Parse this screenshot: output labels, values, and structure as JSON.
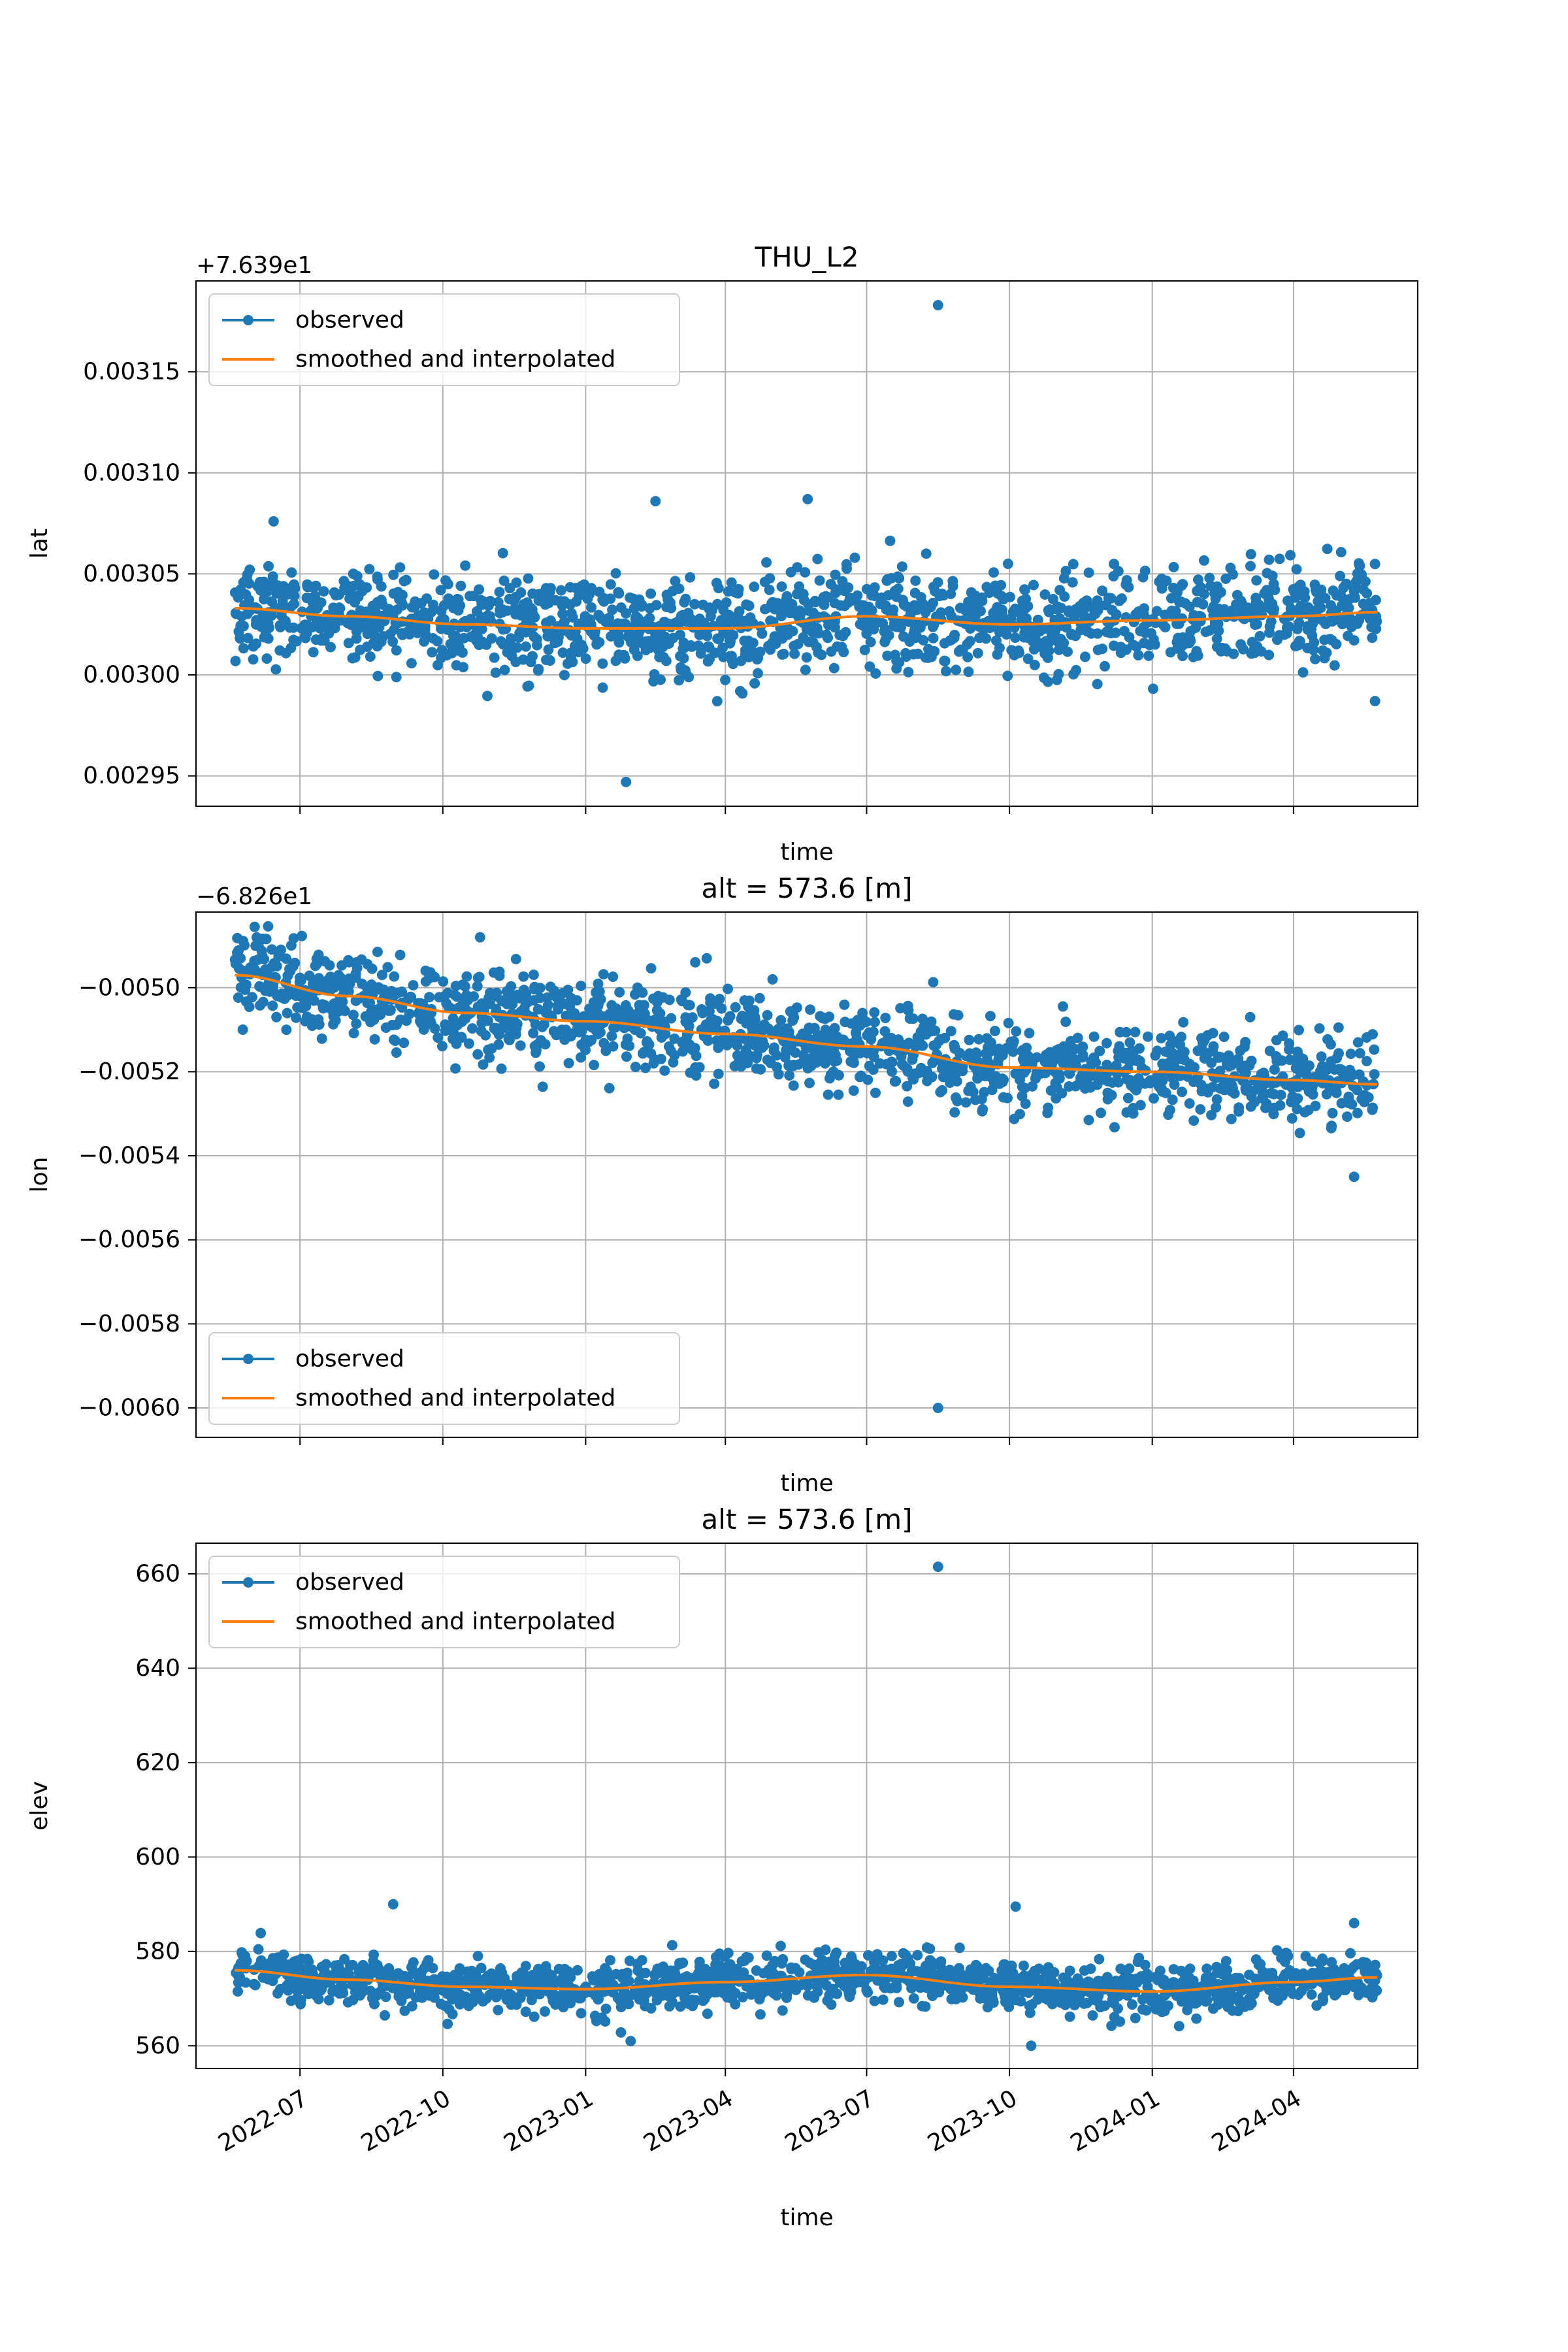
{
  "chart_data": [
    {
      "type": "scatter",
      "title": "THU_L2",
      "xlabel": "time",
      "ylabel": "lat",
      "y_offset_text": "+7.639e1",
      "ylim": [
        0.002935,
        0.003195
      ],
      "yticks": [
        "0.00295",
        "0.00300",
        "0.00305",
        "0.00310",
        "0.00315"
      ],
      "ytick_values": [
        0.00295,
        0.003,
        0.00305,
        0.0031,
        0.00315
      ],
      "grid": true,
      "legend": "upper left",
      "legend_entries": [
        "observed",
        "smoothed and interpolated"
      ],
      "observed": {
        "spread": 1.2e-05,
        "outliers": [
          [
            "2023-08-16",
            0.003183
          ],
          [
            "2023-01-27",
            0.002947
          ],
          [
            "2023-02-15",
            0.003086
          ],
          [
            "2023-05-24",
            0.003087
          ],
          [
            "2022-06-14",
            0.003076
          ]
        ]
      },
      "series": [
        {
          "name": "smoothed and interpolated",
          "x": [
            "2022-05-20",
            "2022-08-01",
            "2022-10-15",
            "2023-01-01",
            "2023-04-01",
            "2023-06-30",
            "2023-10-01",
            "2024-01-01",
            "2024-04-01",
            "2024-05-25"
          ],
          "y": [
            0.003033,
            0.003029,
            0.003025,
            0.003023,
            0.003023,
            0.003029,
            0.003025,
            0.003027,
            0.003029,
            0.003031
          ]
        }
      ]
    },
    {
      "type": "scatter",
      "title": "alt = 573.6 [m]",
      "xlabel": "time",
      "ylabel": "lon",
      "y_offset_text": "−6.826e1",
      "ylim": [
        -0.00607,
        -0.00482
      ],
      "yticks": [
        "−0.0060",
        "−0.0058",
        "−0.0056",
        "−0.0054",
        "−0.0052",
        "−0.0050"
      ],
      "ytick_values": [
        -0.006,
        -0.0058,
        -0.0056,
        -0.0054,
        -0.0052,
        -0.005
      ],
      "grid": true,
      "legend": "lower left",
      "legend_entries": [
        "observed",
        "smoothed and interpolated"
      ],
      "observed": {
        "spread": 5e-05,
        "outliers": [
          [
            "2023-08-16",
            -0.006
          ],
          [
            "2024-05-10",
            -0.00545
          ],
          [
            "2022-10-25",
            -0.00488
          ],
          [
            "2023-03-20",
            -0.00493
          ]
        ]
      },
      "series": [
        {
          "name": "smoothed and interpolated",
          "x": [
            "2022-05-20",
            "2022-08-01",
            "2022-10-15",
            "2023-01-01",
            "2023-04-01",
            "2023-06-30",
            "2023-10-01",
            "2024-01-01",
            "2024-04-01",
            "2024-05-25"
          ],
          "y": [
            -0.00497,
            -0.00502,
            -0.00506,
            -0.00508,
            -0.00511,
            -0.00514,
            -0.00519,
            -0.0052,
            -0.00522,
            -0.00523
          ]
        }
      ]
    },
    {
      "type": "scatter",
      "title": "alt = 573.6 [m]",
      "xlabel": "time",
      "ylabel": "elev",
      "ylim": [
        555.2,
        666.5
      ],
      "yticks": [
        "560",
        "580",
        "600",
        "620",
        "640",
        "660"
      ],
      "ytick_values": [
        560,
        580,
        600,
        620,
        640,
        660
      ],
      "grid": true,
      "legend": "upper left",
      "legend_entries": [
        "observed",
        "smoothed and interpolated"
      ],
      "observed": {
        "spread": 2.5,
        "outliers": [
          [
            "2023-08-16",
            661.5
          ],
          [
            "2022-08-30",
            590.0
          ],
          [
            "2023-10-05",
            589.5
          ],
          [
            "2024-05-10",
            586.0
          ],
          [
            "2023-10-15",
            560.0
          ],
          [
            "2023-01-30",
            561.0
          ]
        ]
      },
      "series": [
        {
          "name": "smoothed and interpolated",
          "x": [
            "2022-05-20",
            "2022-08-01",
            "2022-10-15",
            "2023-01-01",
            "2023-04-01",
            "2023-06-30",
            "2023-10-01",
            "2024-01-01",
            "2024-04-01",
            "2024-05-25"
          ],
          "y": [
            576.0,
            574.0,
            572.5,
            572.0,
            573.5,
            575.0,
            572.5,
            571.5,
            573.5,
            574.5
          ]
        }
      ]
    }
  ],
  "x_axis": {
    "start": "2022-05-20",
    "end": "2024-05-25",
    "xlim": [
      "2022-04-25",
      "2024-06-20"
    ],
    "ticks": [
      "2022-07",
      "2022-10",
      "2023-01",
      "2023-04",
      "2023-07",
      "2023-10",
      "2024-01",
      "2024-04"
    ],
    "tick_dates": [
      "2022-07-01",
      "2022-10-01",
      "2023-01-01",
      "2023-04-01",
      "2023-07-01",
      "2023-10-01",
      "2024-01-01",
      "2024-04-01"
    ]
  },
  "colors": {
    "observed": "#1f77b4",
    "smoothed": "#ff7f0e",
    "grid": "#b0b0b0"
  }
}
